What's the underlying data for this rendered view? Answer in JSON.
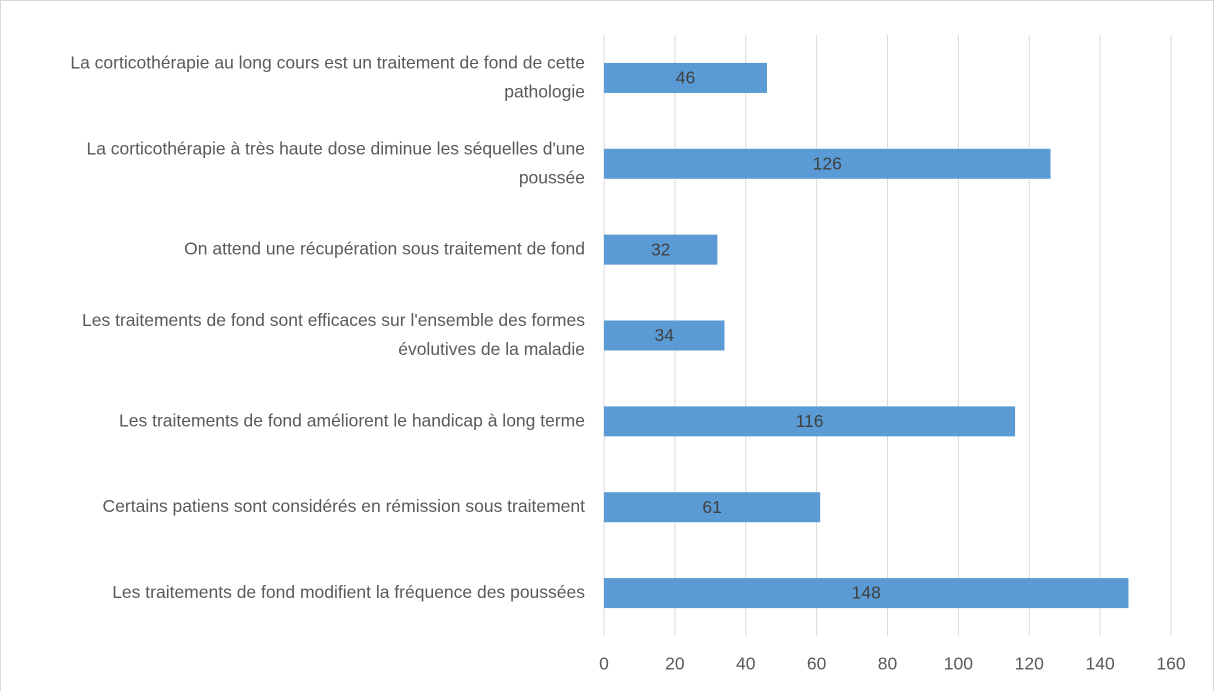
{
  "chart_data": {
    "type": "bar",
    "orientation": "horizontal",
    "categories": [
      "La corticothérapie au long cours est un traitement de fond de cette pathologie",
      "La corticothérapie à très haute dose diminue les séquelles d'une poussée",
      "On attend une récupération sous traitement de fond",
      "Les traitements de fond sont efficaces sur l'ensemble des formes évolutives de la maladie",
      "Les traitements de fond améliorent le handicap à long terme",
      "Certains patiens sont considérés en rémission sous traitement",
      "Les traitements de fond modifient la fréquence des poussées"
    ],
    "values": [
      46,
      126,
      32,
      34,
      116,
      61,
      148
    ],
    "color": "#5b9bd5",
    "xlim": [
      0,
      160
    ],
    "xticks": [
      0,
      20,
      40,
      60,
      80,
      100,
      120,
      140,
      160
    ],
    "grid": true
  }
}
